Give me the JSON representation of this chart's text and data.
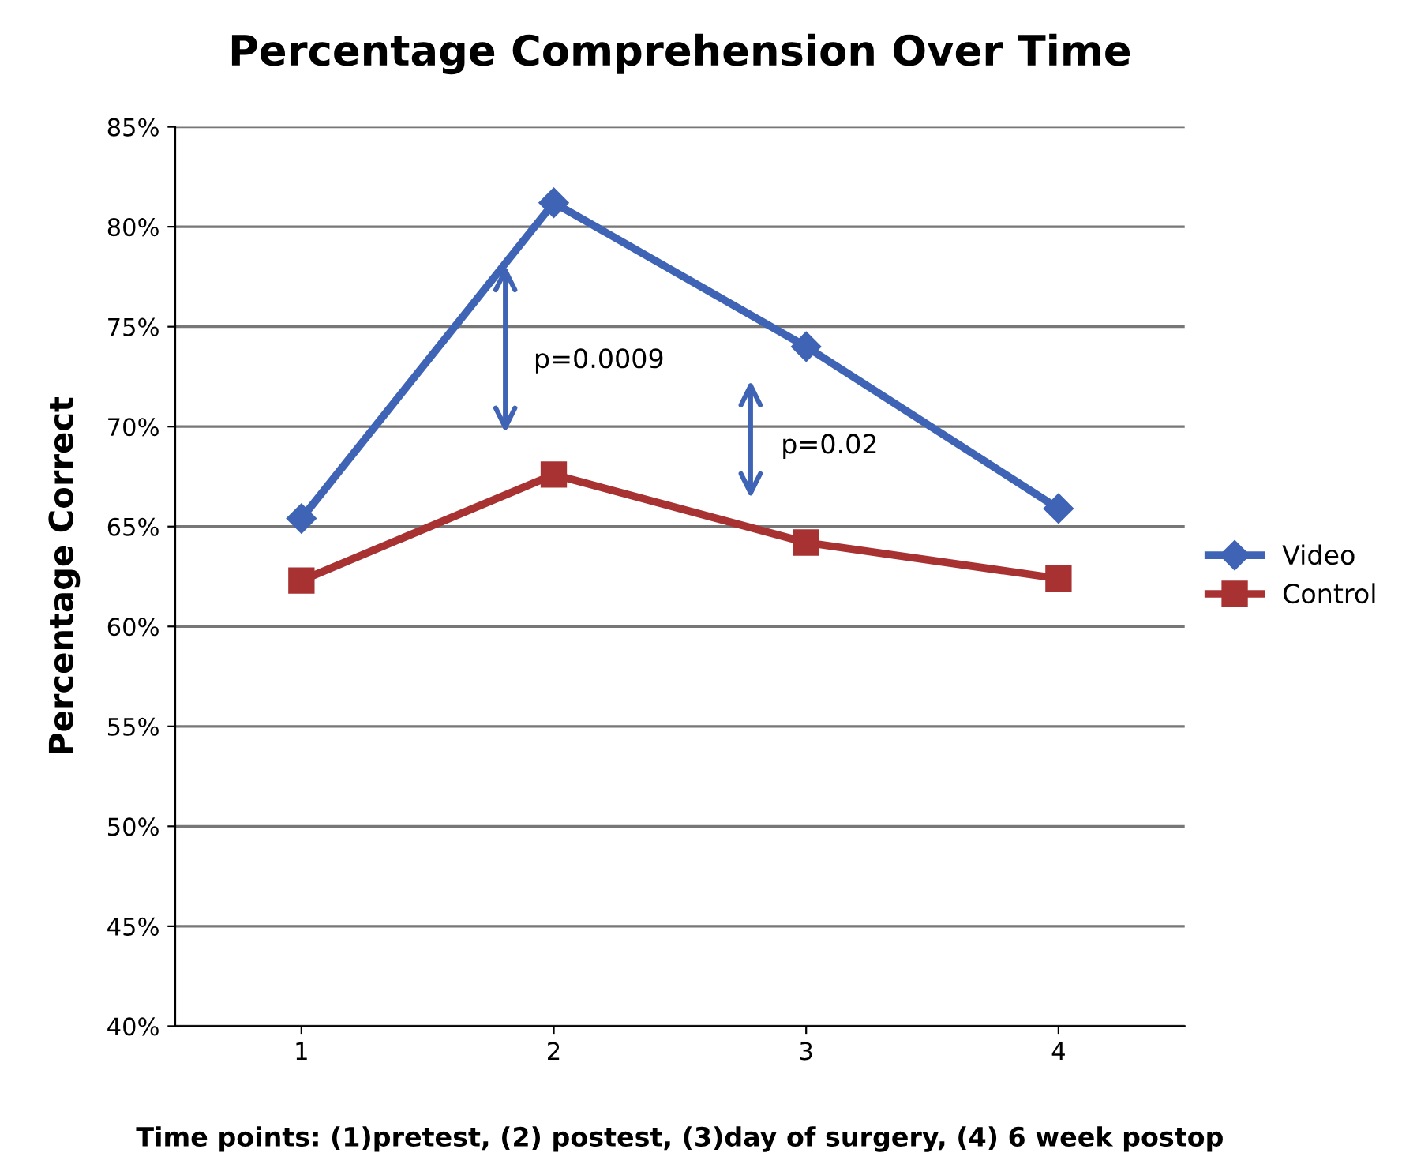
{
  "chart_data": {
    "type": "line",
    "title": "Percentage Comprehension Over Time",
    "xlabel": "Time points: (1)pretest, (2) postest, (3)day of surgery, (4) 6 week postop",
    "ylabel": "Percentage Correct",
    "x": [
      1,
      2,
      3,
      4
    ],
    "series": [
      {
        "name": "Video",
        "color": "#3f63b5",
        "marker": "diamond",
        "values": [
          65.4,
          81.2,
          74.0,
          65.9
        ]
      },
      {
        "name": "Control",
        "color": "#a83232",
        "marker": "square",
        "values": [
          62.3,
          67.6,
          64.2,
          62.4
        ]
      }
    ],
    "xlim": [
      0.5,
      4.5
    ],
    "xticks": [
      1,
      2,
      3,
      4
    ],
    "ylim": [
      40,
      85
    ],
    "yticks": [
      {
        "value": 40,
        "label": "40%"
      },
      {
        "value": 45,
        "label": "45%"
      },
      {
        "value": 50,
        "label": "50%"
      },
      {
        "value": 55,
        "label": "55%"
      },
      {
        "value": 60,
        "label": "60%"
      },
      {
        "value": 65,
        "label": "65%"
      },
      {
        "value": 70,
        "label": "70%"
      },
      {
        "value": 75,
        "label": "75%"
      },
      {
        "value": 80,
        "label": "80%"
      },
      {
        "value": 85,
        "label": "85%"
      }
    ],
    "annotations": [
      "p=0.0009",
      "p=0.02"
    ],
    "grid": "y",
    "legend": "right",
    "line_style": "solid"
  }
}
